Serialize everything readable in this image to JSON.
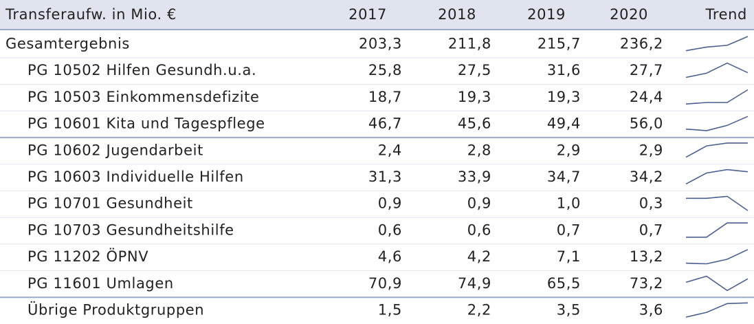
{
  "table": {
    "header": [
      "Transferaufw. in Mio. €",
      "2017",
      "2018",
      "2019",
      "2020",
      "Trend"
    ],
    "rows": [
      {
        "label": "Gesamtergebnis",
        "values": [
          203.3,
          211.8,
          215.7,
          236.2
        ],
        "value_labels": [
          "203,3",
          "211,8",
          "215,7",
          "236,2"
        ]
      },
      {
        "label": "PG 10502 Hilfen Gesundh.u.a.",
        "values": [
          25.8,
          27.5,
          31.6,
          27.7
        ],
        "value_labels": [
          "25,8",
          "27,5",
          "31,6",
          "27,7"
        ]
      },
      {
        "label": "PG 10503 Einkommensdefizite",
        "values": [
          18.7,
          19.3,
          19.3,
          24.4
        ],
        "value_labels": [
          "18,7",
          "19,3",
          "19,3",
          "24,4"
        ]
      },
      {
        "label": "PG 10601 Kita und Tagespflege",
        "values": [
          46.7,
          45.6,
          49.4,
          56.0
        ],
        "value_labels": [
          "46,7",
          "45,6",
          "49,4",
          "56,0"
        ]
      },
      {
        "label": "PG 10602 Jugendarbeit",
        "values": [
          2.4,
          2.8,
          2.9,
          2.9
        ],
        "value_labels": [
          "2,4",
          "2,8",
          "2,9",
          "2,9"
        ]
      },
      {
        "label": "PG 10603 Individuelle Hilfen",
        "values": [
          31.3,
          33.9,
          34.7,
          34.2
        ],
        "value_labels": [
          "31,3",
          "33,9",
          "34,7",
          "34,2"
        ]
      },
      {
        "label": "PG 10701 Gesundheit",
        "values": [
          0.9,
          0.9,
          1.0,
          0.3
        ],
        "value_labels": [
          "0,9",
          "0,9",
          "1,0",
          "0,3"
        ]
      },
      {
        "label": "PG 10703 Gesundheitshilfe",
        "values": [
          0.6,
          0.6,
          0.7,
          0.7
        ],
        "value_labels": [
          "0,6",
          "0,6",
          "0,7",
          "0,7"
        ]
      },
      {
        "label": "PG 11202 ÖPNV",
        "values": [
          4.6,
          4.2,
          7.1,
          13.2
        ],
        "value_labels": [
          "4,6",
          "4,2",
          "7,1",
          "13,2"
        ]
      },
      {
        "label": "PG 11601 Umlagen",
        "values": [
          70.9,
          74.9,
          65.5,
          73.2
        ],
        "value_labels": [
          "70,9",
          "74,9",
          "65,5",
          "73,2"
        ]
      },
      {
        "label": "Übrige Produktgruppen",
        "values": [
          1.5,
          2.2,
          3.5,
          3.6
        ],
        "value_labels": [
          "1,5",
          "2,2",
          "3,5",
          "3,6"
        ]
      }
    ]
  }
}
